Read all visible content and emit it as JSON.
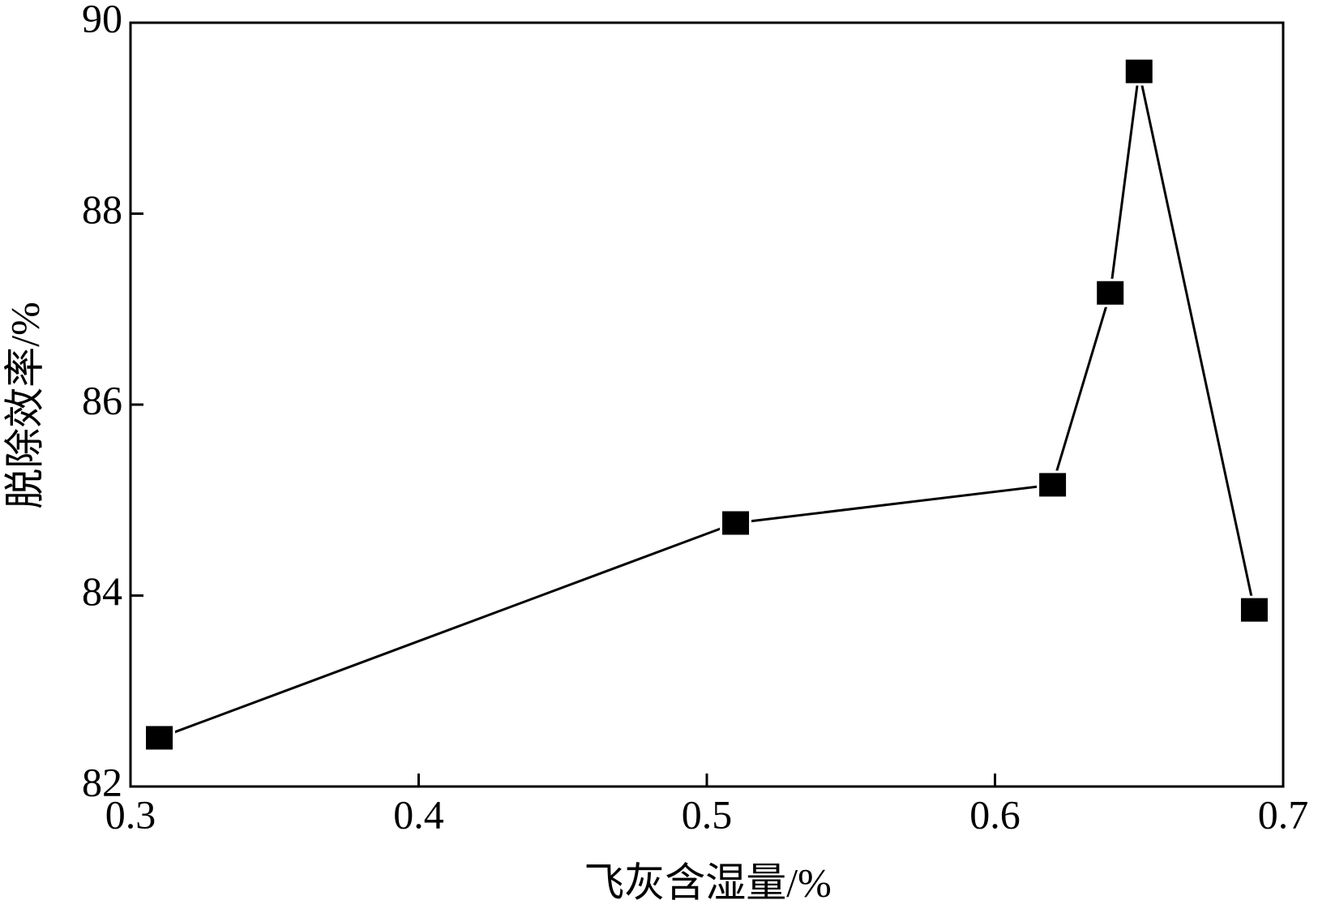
{
  "chart_data": {
    "type": "line",
    "x_label": "飞灰含湿量/%",
    "y_label": "脱除效率/%",
    "x": [
      0.31,
      0.51,
      0.62,
      0.64,
      0.65,
      0.69
    ],
    "series": [
      {
        "color": "#000000",
        "values": [
          82.51,
          84.76,
          85.16,
          87.17,
          89.49,
          83.85
        ]
      }
    ],
    "xlim": [
      0.3,
      0.7
    ],
    "xticks": [
      0.3,
      0.4,
      0.5,
      0.6,
      0.7
    ],
    "ylim": [
      82,
      90
    ],
    "yticks": [
      82,
      84,
      86,
      88,
      90
    ],
    "grid": false
  }
}
